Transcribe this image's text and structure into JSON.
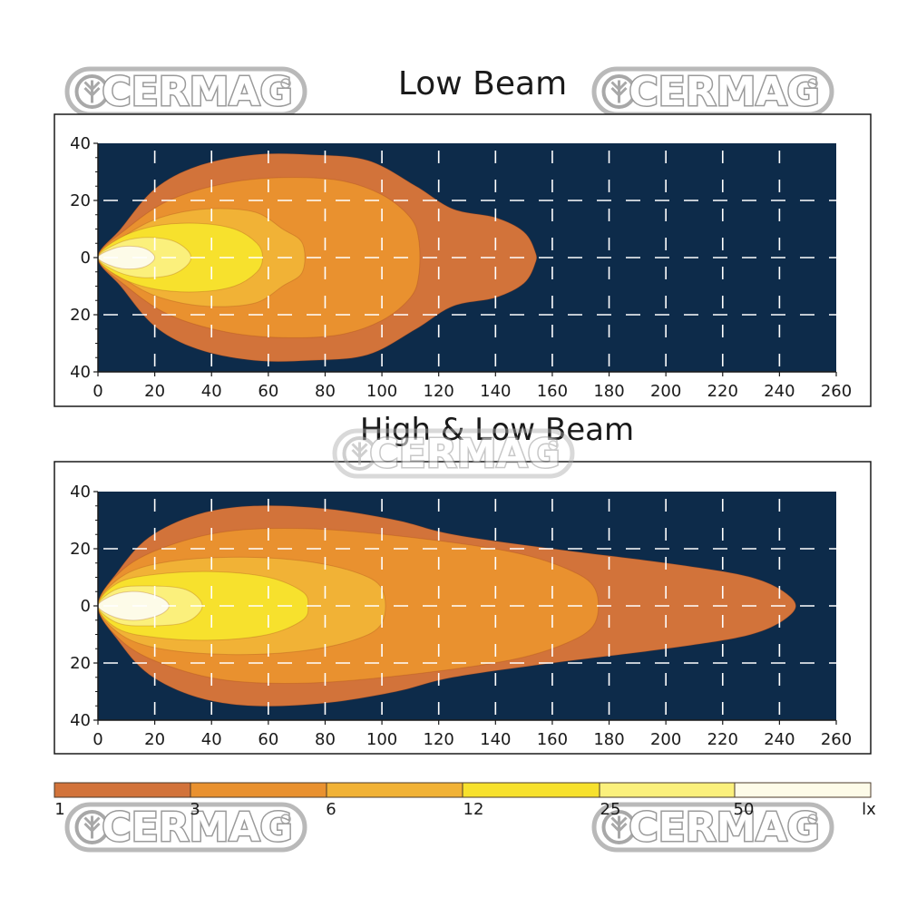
{
  "brand": {
    "watermark_text": "CERMAG",
    "watermark_icon": "wheat-leaf-icon"
  },
  "colors": {
    "plot_bg": "#0d2b4a",
    "grid": "#ffffff",
    "frame": "#1a1a1a",
    "levels": [
      "#d2733a",
      "#e9912f",
      "#f1b236",
      "#f7e12d",
      "#fbf07c",
      "#fdfbe8"
    ]
  },
  "chart_data": [
    {
      "type": "heatmap",
      "title": "Low Beam",
      "x_ticks": [
        0,
        20,
        40,
        60,
        80,
        100,
        120,
        140,
        160,
        180,
        200,
        220,
        240,
        260
      ],
      "y_ticks": [
        "40",
        "20",
        "0",
        "20",
        "40"
      ],
      "xlim": [
        0,
        260
      ],
      "ylim": [
        -40,
        40
      ],
      "grid": true,
      "contours": [
        {
          "lux": 1,
          "points": [
            [
              0,
              0
            ],
            [
              8,
              -10
            ],
            [
              20,
              -24
            ],
            [
              35,
              -32
            ],
            [
              55,
              -36
            ],
            [
              75,
              -36
            ],
            [
              95,
              -34
            ],
            [
              112,
              -25
            ],
            [
              125,
              -17
            ],
            [
              140,
              -14
            ],
            [
              150,
              -9
            ],
            [
              154,
              -2
            ],
            [
              154,
              2
            ],
            [
              150,
              9
            ],
            [
              140,
              14
            ],
            [
              125,
              17
            ],
            [
              112,
              25
            ],
            [
              95,
              34
            ],
            [
              75,
              36
            ],
            [
              55,
              36
            ],
            [
              35,
              32
            ],
            [
              20,
              24
            ],
            [
              8,
              10
            ]
          ]
        },
        {
          "lux": 3,
          "points": [
            [
              0,
              0
            ],
            [
              10,
              -10
            ],
            [
              25,
              -20
            ],
            [
              45,
              -26
            ],
            [
              65,
              -28
            ],
            [
              85,
              -27
            ],
            [
              100,
              -22
            ],
            [
              110,
              -14
            ],
            [
              113,
              -6
            ],
            [
              113,
              6
            ],
            [
              110,
              14
            ],
            [
              100,
              22
            ],
            [
              85,
              27
            ],
            [
              65,
              28
            ],
            [
              45,
              26
            ],
            [
              25,
              20
            ],
            [
              10,
              10
            ]
          ]
        },
        {
          "lux": 6,
          "points": [
            [
              0,
              0
            ],
            [
              10,
              -8
            ],
            [
              22,
              -14
            ],
            [
              38,
              -17
            ],
            [
              55,
              -16
            ],
            [
              65,
              -10
            ],
            [
              72,
              -5
            ],
            [
              72,
              5
            ],
            [
              65,
              10
            ],
            [
              55,
              16
            ],
            [
              38,
              17
            ],
            [
              22,
              14
            ],
            [
              10,
              8
            ]
          ]
        },
        {
          "lux": 12,
          "points": [
            [
              0,
              0
            ],
            [
              8,
              -7
            ],
            [
              20,
              -11
            ],
            [
              35,
              -12
            ],
            [
              48,
              -10
            ],
            [
              56,
              -5
            ],
            [
              58,
              0
            ],
            [
              56,
              5
            ],
            [
              48,
              10
            ],
            [
              35,
              12
            ],
            [
              20,
              11
            ],
            [
              8,
              7
            ]
          ]
        },
        {
          "lux": 25,
          "points": [
            [
              0,
              0
            ],
            [
              7,
              -5
            ],
            [
              16,
              -7
            ],
            [
              26,
              -6
            ],
            [
              32,
              -2
            ],
            [
              32,
              2
            ],
            [
              26,
              6
            ],
            [
              16,
              7
            ],
            [
              7,
              5
            ]
          ]
        },
        {
          "lux": 50,
          "points": [
            [
              0,
              0
            ],
            [
              5,
              -3
            ],
            [
              11,
              -4
            ],
            [
              17,
              -3
            ],
            [
              20,
              0
            ],
            [
              17,
              3
            ],
            [
              11,
              4
            ],
            [
              5,
              3
            ]
          ]
        }
      ]
    },
    {
      "type": "heatmap",
      "title": "High & Low Beam",
      "x_ticks": [
        0,
        20,
        40,
        60,
        80,
        100,
        120,
        140,
        160,
        180,
        200,
        220,
        240,
        260
      ],
      "y_ticks": [
        "40",
        "20",
        "0",
        "20",
        "40"
      ],
      "xlim": [
        0,
        260
      ],
      "ylim": [
        -40,
        40
      ],
      "grid": true,
      "contours": [
        {
          "lux": 1,
          "points": [
            [
              0,
              0
            ],
            [
              7,
              -12
            ],
            [
              18,
              -24
            ],
            [
              35,
              -32
            ],
            [
              55,
              -35
            ],
            [
              80,
              -34
            ],
            [
              105,
              -30
            ],
            [
              125,
              -25
            ],
            [
              160,
              -20
            ],
            [
              200,
              -15
            ],
            [
              230,
              -10
            ],
            [
              244,
              -3
            ],
            [
              244,
              3
            ],
            [
              230,
              10
            ],
            [
              200,
              15
            ],
            [
              160,
              20
            ],
            [
              125,
              25
            ],
            [
              105,
              30
            ],
            [
              80,
              34
            ],
            [
              55,
              35
            ],
            [
              35,
              32
            ],
            [
              18,
              24
            ],
            [
              7,
              12
            ]
          ]
        },
        {
          "lux": 3,
          "points": [
            [
              0,
              0
            ],
            [
              8,
              -12
            ],
            [
              22,
              -20
            ],
            [
              45,
              -26
            ],
            [
              75,
              -27
            ],
            [
              110,
              -24
            ],
            [
              145,
              -19
            ],
            [
              165,
              -13
            ],
            [
              175,
              -6
            ],
            [
              175,
              6
            ],
            [
              165,
              13
            ],
            [
              145,
              19
            ],
            [
              110,
              24
            ],
            [
              75,
              27
            ],
            [
              45,
              26
            ],
            [
              22,
              20
            ],
            [
              8,
              12
            ]
          ]
        },
        {
          "lux": 6,
          "points": [
            [
              0,
              0
            ],
            [
              8,
              -10
            ],
            [
              22,
              -15
            ],
            [
              45,
              -17
            ],
            [
              70,
              -16
            ],
            [
              90,
              -12
            ],
            [
              100,
              -6
            ],
            [
              100,
              6
            ],
            [
              90,
              12
            ],
            [
              70,
              16
            ],
            [
              45,
              17
            ],
            [
              22,
              15
            ],
            [
              8,
              10
            ]
          ]
        },
        {
          "lux": 12,
          "points": [
            [
              0,
              0
            ],
            [
              7,
              -8
            ],
            [
              20,
              -11
            ],
            [
              40,
              -12
            ],
            [
              60,
              -10
            ],
            [
              72,
              -5
            ],
            [
              74,
              0
            ],
            [
              72,
              5
            ],
            [
              60,
              10
            ],
            [
              40,
              12
            ],
            [
              20,
              11
            ],
            [
              7,
              8
            ]
          ]
        },
        {
          "lux": 25,
          "points": [
            [
              0,
              0
            ],
            [
              7,
              -6
            ],
            [
              18,
              -7
            ],
            [
              30,
              -6
            ],
            [
              36,
              -2
            ],
            [
              36,
              2
            ],
            [
              30,
              6
            ],
            [
              18,
              7
            ],
            [
              7,
              6
            ]
          ]
        },
        {
          "lux": 50,
          "points": [
            [
              0,
              0
            ],
            [
              6,
              -4
            ],
            [
              14,
              -5
            ],
            [
              22,
              -3
            ],
            [
              25,
              0
            ],
            [
              22,
              3
            ],
            [
              14,
              5
            ],
            [
              6,
              4
            ]
          ]
        }
      ]
    }
  ],
  "legend": {
    "labels": [
      "1",
      "3",
      "6",
      "12",
      "25",
      "50"
    ],
    "unit": "lx"
  }
}
